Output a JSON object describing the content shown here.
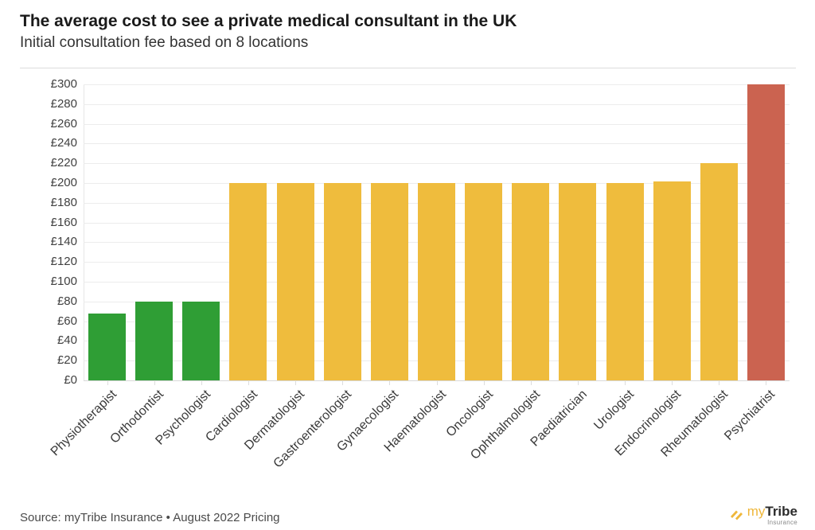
{
  "header": {
    "title": "The average cost to see a private medical consultant in the UK",
    "subtitle": "Initial consultation fee based on 8 locations"
  },
  "chart_data": {
    "type": "bar",
    "title": "The average cost to see a private medical consultant in the UK",
    "subtitle": "Initial consultation fee based on 8 locations",
    "categories": [
      "Physiotherapist",
      "Orthodontist",
      "Psychologist",
      "Cardiologist",
      "Dermatologist",
      "Gastroenterologist",
      "Gynaecologist",
      "Haematologist",
      "Oncologist",
      "Ophthalmologist",
      "Paediatrician",
      "Urologist",
      "Endocrinologist",
      "Rheumatologist",
      "Psychiatrist"
    ],
    "values": [
      68,
      80,
      80,
      200,
      200,
      200,
      200,
      200,
      200,
      200,
      200,
      200,
      202,
      220,
      300
    ],
    "bar_colors": [
      "#2f9e35",
      "#2f9e35",
      "#2f9e35",
      "#efbc3d",
      "#efbc3d",
      "#efbc3d",
      "#efbc3d",
      "#efbc3d",
      "#efbc3d",
      "#efbc3d",
      "#efbc3d",
      "#efbc3d",
      "#efbc3d",
      "#efbc3d",
      "#cb6350"
    ],
    "xlabel": "",
    "ylabel": "",
    "ylim": [
      0,
      300
    ],
    "ytick_step": 20,
    "ytick_labels": [
      "£0",
      "£20",
      "£40",
      "£60",
      "£80",
      "£100",
      "£120",
      "£140",
      "£160",
      "£180",
      "£200",
      "£220",
      "£240",
      "£260",
      "£280",
      "£300"
    ],
    "currency_prefix": "£",
    "grid": true,
    "legend_position": "none"
  },
  "colors": {
    "green": "#2f9e35",
    "amber": "#efbc3d",
    "red": "#cb6350",
    "gridline": "#ececec",
    "logo_yellow": "#efb73a"
  },
  "footer": {
    "source_text": "Source: myTribe Insurance • August 2022 Pricing",
    "logo": {
      "my": "my",
      "tribe": "Tribe",
      "sub": "Insurance"
    }
  }
}
